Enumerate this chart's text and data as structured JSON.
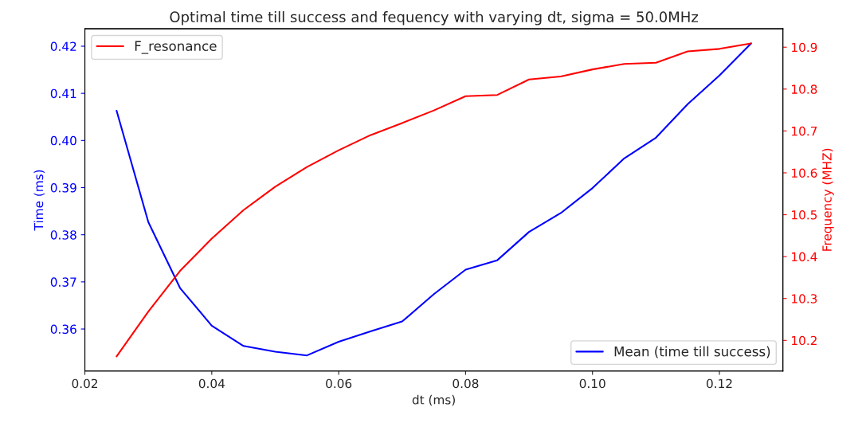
{
  "chart_data": {
    "type": "line",
    "title": "Optimal time till success and fequency with varying dt, sigma = 50.0MHz",
    "xlabel": "dt (ms)",
    "ylabel": "Time (ms)",
    "y2label": "Frequency (MHZ)",
    "x": [
      0.025,
      0.03,
      0.035,
      0.04,
      0.045,
      0.05,
      0.055,
      0.06,
      0.065,
      0.07,
      0.075,
      0.08,
      0.085,
      0.09,
      0.095,
      0.1,
      0.105,
      0.11,
      0.115,
      0.12,
      0.125
    ],
    "series": [
      {
        "name": "Mean (time till success)",
        "color": "#0000ff",
        "values": [
          0.4063,
          0.3827,
          0.3687,
          0.3607,
          0.3564,
          0.3552,
          0.3544,
          0.3573,
          0.3595,
          0.3616,
          0.3674,
          0.3726,
          0.3746,
          0.3806,
          0.3846,
          0.3899,
          0.3962,
          0.4006,
          0.4077,
          0.4138,
          0.4206
        ]
      },
      {
        "name": "F_resonance",
        "color": "#ff0000",
        "axis": "y2",
        "values": [
          10.162,
          10.269,
          10.366,
          10.443,
          10.511,
          10.567,
          10.614,
          10.654,
          10.69,
          10.719,
          10.749,
          10.783,
          10.786,
          10.823,
          10.83,
          10.847,
          10.86,
          10.863,
          10.89,
          10.896,
          10.909
        ]
      }
    ],
    "xlim": [
      0.02,
      0.13
    ],
    "xticks": [
      {
        "value": 0.02,
        "label": "0.02"
      },
      {
        "value": 0.04,
        "label": "0.04"
      },
      {
        "value": 0.06,
        "label": "0.06"
      },
      {
        "value": 0.08,
        "label": "0.08"
      },
      {
        "value": 0.1,
        "label": "0.10"
      },
      {
        "value": 0.12,
        "label": "0.12"
      }
    ],
    "ylim": [
      0.3511,
      0.4237
    ],
    "yticks": [
      {
        "value": 0.36,
        "label": "0.36"
      },
      {
        "value": 0.37,
        "label": "0.37"
      },
      {
        "value": 0.38,
        "label": "0.38"
      },
      {
        "value": 0.39,
        "label": "0.39"
      },
      {
        "value": 0.4,
        "label": "0.40"
      },
      {
        "value": 0.41,
        "label": "0.41"
      },
      {
        "value": 0.42,
        "label": "0.42"
      }
    ],
    "y2lim": [
      10.127,
      10.944
    ],
    "y2ticks": [
      10.2,
      10.3,
      10.4,
      10.5,
      10.6,
      10.7,
      10.8,
      10.9
    ],
    "legend": [
      "bottom right",
      "top left"
    ],
    "grid": false,
    "marker": "none",
    "line_style": "solid"
  }
}
